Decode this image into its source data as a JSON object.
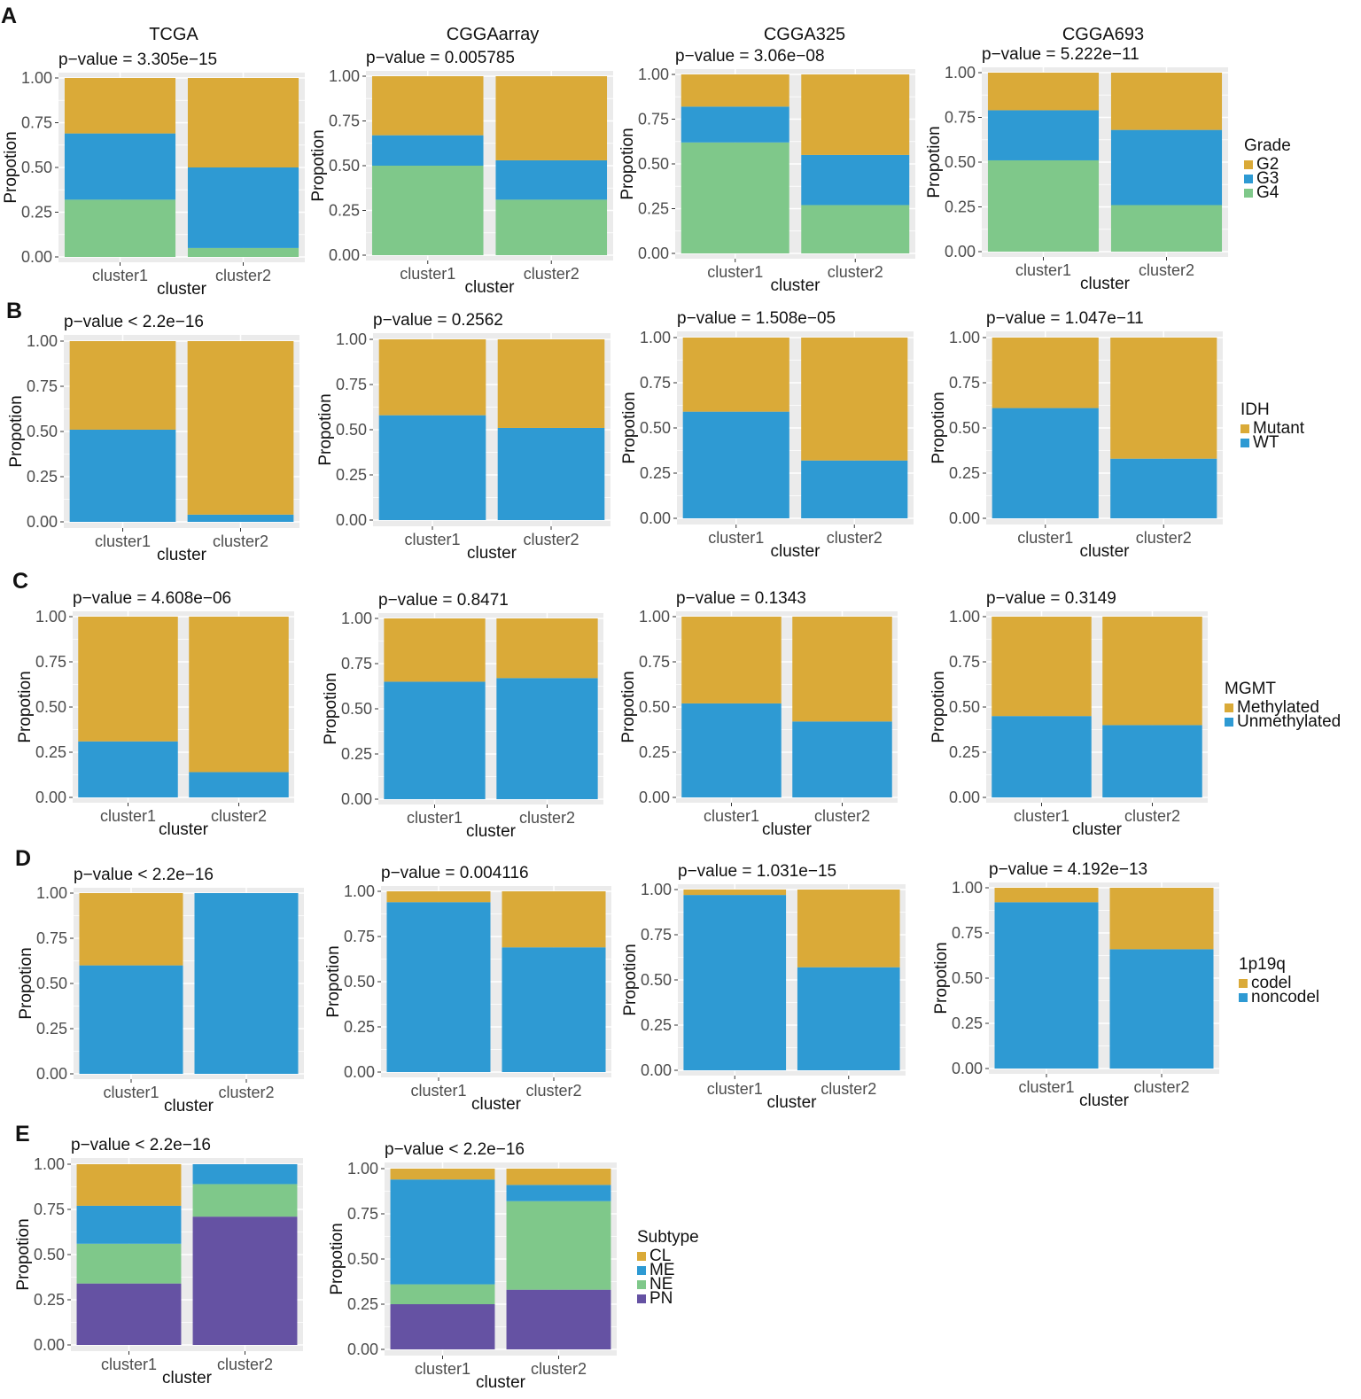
{
  "colors": {
    "panel_bg": "#EBEBEB",
    "grid": "#FFFFFF",
    "text": "#111111",
    "tick_text": "#4D4D4D",
    "G2": "#DAAA38",
    "G3": "#2E9AD3",
    "G4": "#7FC88A",
    "Mutant": "#DAAA38",
    "WT": "#2E9AD3",
    "Methylated": "#DAAA38",
    "Unmethylated": "#2E9AD3",
    "codel": "#DAAA38",
    "noncodel": "#2E9AD3",
    "CL": "#DAAA38",
    "ME": "#2E9AD3",
    "NE": "#7FC88A",
    "PN": "#6552A3"
  },
  "column_titles": [
    "TCGA",
    "CGGAarray",
    "CGGA325",
    "CGGA693"
  ],
  "common": {
    "ylabel": "Propotion",
    "xlabel": "cluster",
    "categories": [
      "cluster1",
      "cluster2"
    ],
    "yticks": [
      "0.00",
      "0.25",
      "0.50",
      "0.75",
      "1.00"
    ],
    "ylim": [
      0,
      1
    ]
  },
  "rows": [
    {
      "letter": "A",
      "legend_title": "Grade",
      "levels": [
        "G2",
        "G3",
        "G4"
      ]
    },
    {
      "letter": "B",
      "legend_title": "IDH",
      "levels": [
        "Mutant",
        "WT"
      ]
    },
    {
      "letter": "C",
      "legend_title": "MGMT",
      "levels": [
        "Methylated",
        "Unmethylated"
      ]
    },
    {
      "letter": "D",
      "legend_title": "1p19q",
      "levels": [
        "codel",
        "noncodel"
      ]
    },
    {
      "letter": "E",
      "legend_title": "Subtype",
      "levels": [
        "CL",
        "ME",
        "NE",
        "PN"
      ]
    }
  ],
  "chart_data": [
    {
      "type": "bar",
      "stacked": true,
      "row": "A",
      "dataset": "TCGA",
      "title": "p−value = 3.305e−15",
      "categories": [
        "cluster1",
        "cluster2"
      ],
      "series": [
        {
          "name": "G2",
          "values": [
            0.31,
            0.5
          ]
        },
        {
          "name": "G3",
          "values": [
            0.37,
            0.45
          ]
        },
        {
          "name": "G4",
          "values": [
            0.32,
            0.05
          ]
        }
      ]
    },
    {
      "type": "bar",
      "stacked": true,
      "row": "A",
      "dataset": "CGGAarray",
      "title": "p−value = 0.005785",
      "categories": [
        "cluster1",
        "cluster2"
      ],
      "series": [
        {
          "name": "G2",
          "values": [
            0.33,
            0.47
          ]
        },
        {
          "name": "G3",
          "values": [
            0.17,
            0.22
          ]
        },
        {
          "name": "G4",
          "values": [
            0.5,
            0.31
          ]
        }
      ]
    },
    {
      "type": "bar",
      "stacked": true,
      "row": "A",
      "dataset": "CGGA325",
      "title": "p−value = 3.06e−08",
      "categories": [
        "cluster1",
        "cluster2"
      ],
      "series": [
        {
          "name": "G2",
          "values": [
            0.18,
            0.45
          ]
        },
        {
          "name": "G3",
          "values": [
            0.2,
            0.28
          ]
        },
        {
          "name": "G4",
          "values": [
            0.62,
            0.27
          ]
        }
      ]
    },
    {
      "type": "bar",
      "stacked": true,
      "row": "A",
      "dataset": "CGGA693",
      "title": "p−value = 5.222e−11",
      "categories": [
        "cluster1",
        "cluster2"
      ],
      "series": [
        {
          "name": "G2",
          "values": [
            0.21,
            0.32
          ]
        },
        {
          "name": "G3",
          "values": [
            0.28,
            0.42
          ]
        },
        {
          "name": "G4",
          "values": [
            0.51,
            0.26
          ]
        }
      ]
    },
    {
      "type": "bar",
      "stacked": true,
      "row": "B",
      "dataset": "TCGA",
      "title": "p−value < 2.2e−16",
      "categories": [
        "cluster1",
        "cluster2"
      ],
      "series": [
        {
          "name": "Mutant",
          "values": [
            0.49,
            0.96
          ]
        },
        {
          "name": "WT",
          "values": [
            0.51,
            0.04
          ]
        }
      ]
    },
    {
      "type": "bar",
      "stacked": true,
      "row": "B",
      "dataset": "CGGAarray",
      "title": "p−value = 0.2562",
      "categories": [
        "cluster1",
        "cluster2"
      ],
      "series": [
        {
          "name": "Mutant",
          "values": [
            0.42,
            0.49
          ]
        },
        {
          "name": "WT",
          "values": [
            0.58,
            0.51
          ]
        }
      ]
    },
    {
      "type": "bar",
      "stacked": true,
      "row": "B",
      "dataset": "CGGA325",
      "title": "p−value = 1.508e−05",
      "categories": [
        "cluster1",
        "cluster2"
      ],
      "series": [
        {
          "name": "Mutant",
          "values": [
            0.41,
            0.68
          ]
        },
        {
          "name": "WT",
          "values": [
            0.59,
            0.32
          ]
        }
      ]
    },
    {
      "type": "bar",
      "stacked": true,
      "row": "B",
      "dataset": "CGGA693",
      "title": "p−value = 1.047e−11",
      "categories": [
        "cluster1",
        "cluster2"
      ],
      "series": [
        {
          "name": "Mutant",
          "values": [
            0.39,
            0.67
          ]
        },
        {
          "name": "WT",
          "values": [
            0.61,
            0.33
          ]
        }
      ]
    },
    {
      "type": "bar",
      "stacked": true,
      "row": "C",
      "dataset": "TCGA",
      "title": "p−value = 4.608e−06",
      "categories": [
        "cluster1",
        "cluster2"
      ],
      "series": [
        {
          "name": "Methylated",
          "values": [
            0.69,
            0.86
          ]
        },
        {
          "name": "Unmethylated",
          "values": [
            0.31,
            0.14
          ]
        }
      ]
    },
    {
      "type": "bar",
      "stacked": true,
      "row": "C",
      "dataset": "CGGAarray",
      "title": "p−value = 0.8471",
      "categories": [
        "cluster1",
        "cluster2"
      ],
      "series": [
        {
          "name": "Methylated",
          "values": [
            0.35,
            0.33
          ]
        },
        {
          "name": "Unmethylated",
          "values": [
            0.65,
            0.67
          ]
        }
      ]
    },
    {
      "type": "bar",
      "stacked": true,
      "row": "C",
      "dataset": "CGGA325",
      "title": "p−value = 0.1343",
      "categories": [
        "cluster1",
        "cluster2"
      ],
      "series": [
        {
          "name": "Methylated",
          "values": [
            0.48,
            0.58
          ]
        },
        {
          "name": "Unmethylated",
          "values": [
            0.52,
            0.42
          ]
        }
      ]
    },
    {
      "type": "bar",
      "stacked": true,
      "row": "C",
      "dataset": "CGGA693",
      "title": "p−value = 0.3149",
      "categories": [
        "cluster1",
        "cluster2"
      ],
      "series": [
        {
          "name": "Methylated",
          "values": [
            0.55,
            0.6
          ]
        },
        {
          "name": "Unmethylated",
          "values": [
            0.45,
            0.4
          ]
        }
      ]
    },
    {
      "type": "bar",
      "stacked": true,
      "row": "D",
      "dataset": "TCGA",
      "title": "p−value < 2.2e−16",
      "categories": [
        "cluster1",
        "cluster2"
      ],
      "series": [
        {
          "name": "codel",
          "values": [
            0.4,
            0.0
          ]
        },
        {
          "name": "noncodel",
          "values": [
            0.6,
            1.0
          ]
        }
      ]
    },
    {
      "type": "bar",
      "stacked": true,
      "row": "D",
      "dataset": "CGGAarray",
      "title": "p−value = 0.004116",
      "categories": [
        "cluster1",
        "cluster2"
      ],
      "series": [
        {
          "name": "codel",
          "values": [
            0.06,
            0.31
          ]
        },
        {
          "name": "noncodel",
          "values": [
            0.94,
            0.69
          ]
        }
      ]
    },
    {
      "type": "bar",
      "stacked": true,
      "row": "D",
      "dataset": "CGGA325",
      "title": "p−value = 1.031e−15",
      "categories": [
        "cluster1",
        "cluster2"
      ],
      "series": [
        {
          "name": "codel",
          "values": [
            0.03,
            0.43
          ]
        },
        {
          "name": "noncodel",
          "values": [
            0.97,
            0.57
          ]
        }
      ]
    },
    {
      "type": "bar",
      "stacked": true,
      "row": "D",
      "dataset": "CGGA693",
      "title": "p−value = 4.192e−13",
      "categories": [
        "cluster1",
        "cluster2"
      ],
      "series": [
        {
          "name": "codel",
          "values": [
            0.08,
            0.34
          ]
        },
        {
          "name": "noncodel",
          "values": [
            0.92,
            0.66
          ]
        }
      ]
    },
    {
      "type": "bar",
      "stacked": true,
      "row": "E",
      "dataset": "TCGA",
      "title": "p−value < 2.2e−16",
      "categories": [
        "cluster1",
        "cluster2"
      ],
      "series": [
        {
          "name": "CL",
          "values": [
            0.23,
            0.0
          ]
        },
        {
          "name": "ME",
          "values": [
            0.21,
            0.11
          ]
        },
        {
          "name": "NE",
          "values": [
            0.22,
            0.18
          ]
        },
        {
          "name": "PN",
          "values": [
            0.34,
            0.71
          ]
        }
      ]
    },
    {
      "type": "bar",
      "stacked": true,
      "row": "E",
      "dataset": "CGGAarray",
      "title": "p−value < 2.2e−16",
      "categories": [
        "cluster1",
        "cluster2"
      ],
      "series": [
        {
          "name": "CL",
          "values": [
            0.06,
            0.09
          ]
        },
        {
          "name": "ME",
          "values": [
            0.58,
            0.09
          ]
        },
        {
          "name": "NE",
          "values": [
            0.11,
            0.49
          ]
        },
        {
          "name": "PN",
          "values": [
            0.25,
            0.33
          ]
        }
      ]
    }
  ]
}
